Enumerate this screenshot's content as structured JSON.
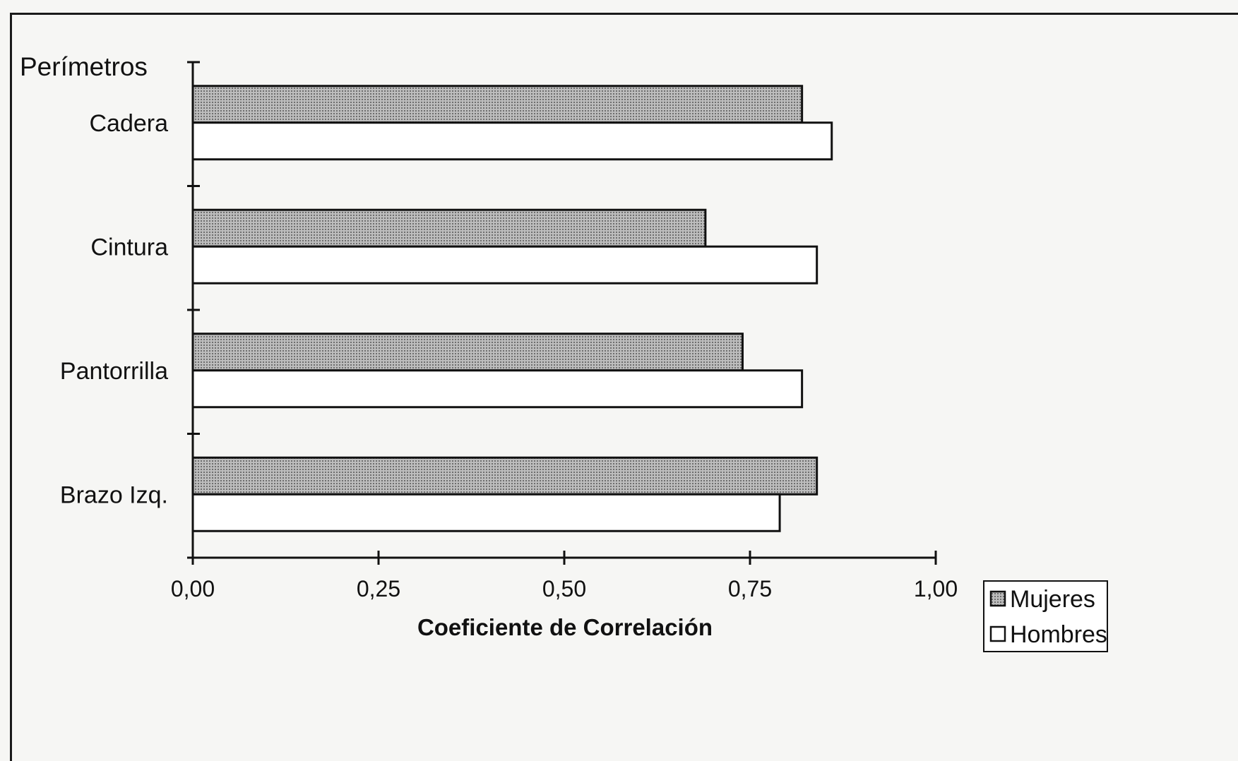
{
  "chart_data": {
    "type": "bar",
    "orientation": "horizontal",
    "title": "",
    "ylabel": "Perímetros",
    "xlabel": "Coeficiente de Correlación",
    "categories": [
      "Cadera",
      "Cintura",
      "Pantorrilla",
      "Brazo Izq."
    ],
    "series": [
      {
        "name": "Mujeres",
        "values": [
          0.82,
          0.69,
          0.74,
          0.84
        ],
        "color": "#a8a8a8",
        "pattern": "dotted-gray"
      },
      {
        "name": "Hombres",
        "values": [
          0.86,
          0.84,
          0.82,
          0.79
        ],
        "color": "#ffffff",
        "pattern": "none"
      }
    ],
    "xlim": [
      0,
      1
    ],
    "xticks": [
      0,
      0.25,
      0.5,
      0.75,
      1.0
    ],
    "xtick_labels": [
      "0,00",
      "0,25",
      "0,50",
      "0,75",
      "1,00"
    ],
    "grid": false,
    "legend_position": "bottom-right"
  }
}
